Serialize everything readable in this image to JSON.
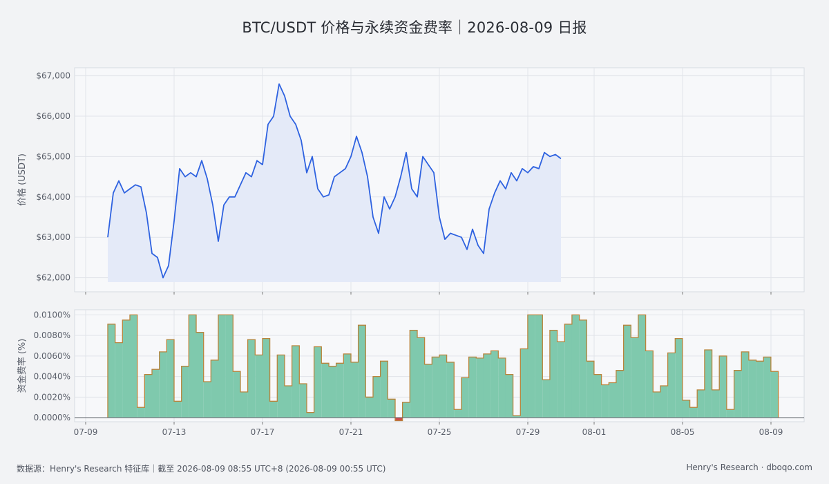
{
  "title": "BTC/USDT 价格与永续资金费率｜2026-08-09 日报",
  "footer": {
    "source": "数据源：Henry's Research 特征库｜截至 2026-08-09 08:55 UTC+8 (2026-08-09 00:55 UTC)",
    "brand": "Henry's Research · dboqo.com"
  },
  "colors": {
    "page_bg": "#f2f3f5",
    "plot_bg": "#f7f8fa",
    "price_line": "#2e62e0",
    "price_fill": "#e4eaf8",
    "funding_fill": "#7fc9ad",
    "funding_edge": "#b9843c",
    "negative_fill": "#d24b4b",
    "grid": "#e1e4e9"
  },
  "chart_data": [
    {
      "type": "line",
      "name": "price",
      "ylabel": "价格 (USDT)",
      "ylim": [
        61650,
        67200
      ],
      "yticks": [
        62000,
        63000,
        64000,
        65000,
        66000,
        67000
      ],
      "ytick_labels": [
        "$62,000",
        "$63,000",
        "$64,000",
        "$65,000",
        "$66,000",
        "$67,000"
      ],
      "xlim": [
        "2026-07-09",
        "2026-08-09"
      ],
      "x_tick_labels": [
        "07-09",
        "07-13",
        "07-17",
        "07-21",
        "07-25",
        "07-29",
        "08-01",
        "08-05",
        "08-09"
      ],
      "x_start": "2026-07-10",
      "x_step_days": 0.25,
      "fill_under": true,
      "grid": true,
      "y": [
        63000,
        64100,
        64400,
        64100,
        64200,
        64300,
        64250,
        63600,
        62600,
        62500,
        62000,
        62300,
        63400,
        64700,
        64500,
        64600,
        64500,
        64900,
        64450,
        63800,
        62900,
        63800,
        64000,
        64000,
        64300,
        64600,
        64500,
        64900,
        64800,
        65800,
        66000,
        66800,
        66500,
        66000,
        65800,
        65400,
        64600,
        65000,
        64200,
        64000,
        64050,
        64500,
        64600,
        64700,
        65000,
        65500,
        65100,
        64500,
        63500,
        63100,
        64000,
        63700,
        64000,
        64500,
        65100,
        64200,
        64000,
        65000,
        64800,
        64600,
        63500,
        62950,
        63100,
        63050,
        63000,
        62700,
        63200,
        62800,
        62600,
        63700,
        64100,
        64400,
        64200,
        64600,
        64400,
        64700,
        64600,
        64750,
        64700,
        65100,
        65000,
        65050,
        64950
      ]
    },
    {
      "type": "bar",
      "name": "funding",
      "ylabel": "资金费率 (%)",
      "ylim": [
        -0.0004,
        0.0105
      ],
      "yticks": [
        0.0,
        0.002,
        0.004,
        0.006,
        0.008,
        0.01
      ],
      "ytick_labels": [
        "0.0000%",
        "0.0020%",
        "0.0040%",
        "0.0060%",
        "0.0080%",
        "0.0100%"
      ],
      "step": true,
      "x_start": "2026-07-10",
      "x_step_days": 0.3333,
      "values": [
        0.0091,
        0.0073,
        0.0095,
        0.01,
        0.001,
        0.0042,
        0.0047,
        0.0064,
        0.0076,
        0.0016,
        0.005,
        0.01,
        0.0083,
        0.0035,
        0.0056,
        0.01,
        0.01,
        0.0045,
        0.0025,
        0.0076,
        0.0061,
        0.0077,
        0.0016,
        0.0061,
        0.0031,
        0.007,
        0.0033,
        0.0005,
        0.0069,
        0.0053,
        0.005,
        0.0053,
        0.0062,
        0.0054,
        0.009,
        0.002,
        0.004,
        0.0055,
        0.0018,
        -0.0003,
        0.0015,
        0.0085,
        0.0078,
        0.0052,
        0.0059,
        0.0061,
        0.0054,
        0.0008,
        0.0039,
        0.0059,
        0.0058,
        0.0062,
        0.0065,
        0.0058,
        0.0042,
        0.0002,
        0.0067,
        0.01,
        0.01,
        0.0037,
        0.0085,
        0.0074,
        0.0091,
        0.01,
        0.0095,
        0.0055,
        0.0042,
        0.0032,
        0.0034,
        0.0046,
        0.009,
        0.0078,
        0.01,
        0.0065,
        0.0025,
        0.0031,
        0.0063,
        0.0077,
        0.0017,
        0.001,
        0.0027,
        0.0066,
        0.0027,
        0.006,
        0.0008,
        0.0046,
        0.0064,
        0.0056,
        0.0055,
        0.0059,
        0.0045
      ]
    }
  ]
}
